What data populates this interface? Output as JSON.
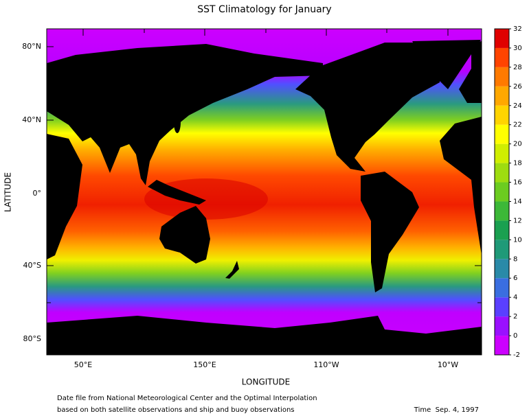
{
  "title": "SST Climatology for January",
  "axes": {
    "x_label": "LONGITUDE",
    "y_label": "LATITUDE",
    "lat_ticks": [
      "80°N",
      "40°N",
      "0°",
      "40°S",
      "80°S"
    ],
    "lon_ticks": [
      "50°E",
      "150°E",
      "110°W",
      "10°W"
    ]
  },
  "colorbar": {
    "ticks": [
      -2,
      0,
      2,
      4,
      6,
      8,
      10,
      12,
      14,
      16,
      18,
      20,
      22,
      24,
      26,
      28,
      30,
      32
    ],
    "colors": [
      "#cc00ff",
      "#9a10ff",
      "#5a40ff",
      "#3a6ee0",
      "#2a8aa8",
      "#1f9a78",
      "#1aa050",
      "#3cb838",
      "#6ccc20",
      "#9edc10",
      "#d0ee00",
      "#ffff00",
      "#ffd400",
      "#ffa800",
      "#ff7a00",
      "#ff4400",
      "#e00000",
      "#a80000"
    ]
  },
  "footer": {
    "source": [
      "Date file from National Meteorological Center and the Optimal Interpolation",
      "based on both satellite observations and ship and buoy observations"
    ],
    "time": "Time  Sep. 4, 1997"
  }
}
